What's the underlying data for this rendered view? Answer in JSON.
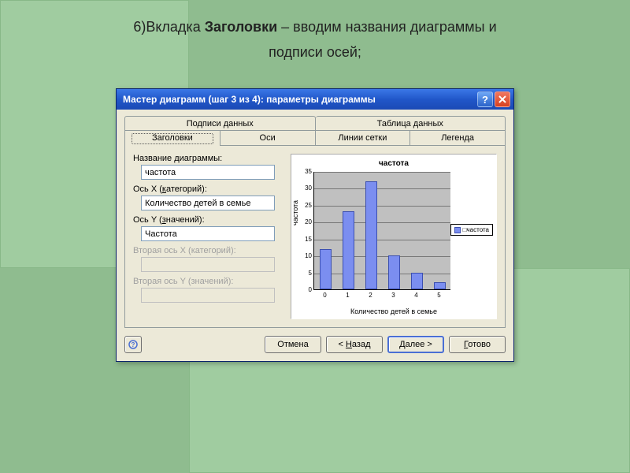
{
  "slide": {
    "prefix": "6)Вкладка ",
    "bold": "Заголовки",
    "suffix": " – вводим названия диаграммы и",
    "line2": "подписи осей;"
  },
  "window": {
    "title": "Мастер диаграмм (шаг 3 из 4): параметры диаграммы"
  },
  "tabs": {
    "top": [
      "Подписи данных",
      "Таблица данных"
    ],
    "bottom": [
      "Заголовки",
      "Оси",
      "Линии сетки",
      "Легенда"
    ],
    "active": "Заголовки"
  },
  "fields": {
    "chart_title": {
      "label": "Название диаграммы:",
      "value": "частота",
      "enabled": true
    },
    "x_axis": {
      "label": "Ось X (категорий):",
      "value": "Количество детей в семье",
      "enabled": true
    },
    "y_axis": {
      "label": "Ось Y (значений):",
      "value": "Частота",
      "enabled": true
    },
    "x2_axis": {
      "label": "Вторая ось X (категорий):",
      "value": "",
      "enabled": false
    },
    "y2_axis": {
      "label": "Вторая ось Y (значений):",
      "value": "",
      "enabled": false
    }
  },
  "chart": {
    "type": "bar",
    "title": "частота",
    "ylabel": "частота",
    "xlabel": "Количество детей в семье",
    "categories": [
      "0",
      "1",
      "2",
      "3",
      "4",
      "5"
    ],
    "values": [
      12,
      23,
      32,
      10,
      5,
      2
    ],
    "ylim": [
      0,
      35
    ],
    "ytick_step": 5,
    "bar_color": "#7b8ef0",
    "bar_border": "#3b4fb0",
    "plot_bg": "#c0c0c0",
    "grid_color": "#777777",
    "legend_label": "частота"
  },
  "buttons": {
    "cancel": "Отмена",
    "back": "< Назад",
    "next": "Далее >",
    "finish": "Готово"
  }
}
